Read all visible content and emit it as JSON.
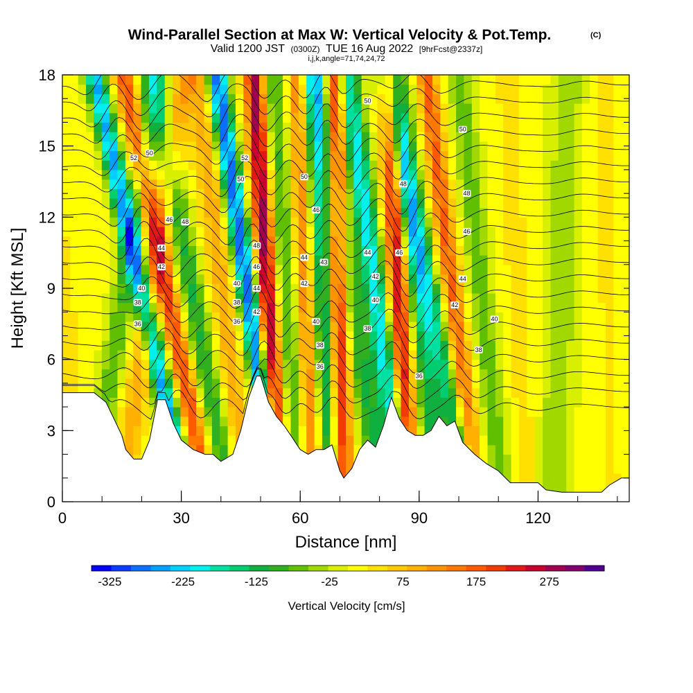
{
  "chart_data": {
    "type": "heatmap",
    "title": "Wind-Parallel Section at Max W: Vertical Velocity & Pot.Temp.",
    "title_mark": "(C)",
    "subtitle_a": "Valid 1200 JST",
    "subtitle_b": "(0300Z)",
    "subtitle_c": "TUE 16 Aug 2022",
    "subtitle_d": "[9hrFcst@2337z]",
    "index_line": "i,j,k,angle=71,74,24,72",
    "xlabel": "Distance [nm]",
    "ylabel": "Height [Kft MSL]",
    "xlim": [
      0,
      143
    ],
    "ylim": [
      0,
      18
    ],
    "x_ticks": [
      0,
      30,
      60,
      90,
      120
    ],
    "x_tick_labels": [
      "0",
      "30",
      "60",
      "90",
      "120"
    ],
    "x_minor_step": 10,
    "y_ticks": [
      0,
      3,
      6,
      9,
      12,
      15,
      18
    ],
    "y_tick_labels": [
      "0",
      "3",
      "6",
      "9",
      "12",
      "15",
      "18"
    ],
    "y_minor_step": 1,
    "colorbar": {
      "title": "Vertical Velocity [cm/s]",
      "min": -350,
      "max": 350,
      "tick_values": [
        -325,
        -225,
        -125,
        -25,
        75,
        175,
        275
      ],
      "tick_labels": [
        "-325",
        "-225",
        "-125",
        "-25",
        "75",
        "175",
        "275"
      ],
      "colors": [
        "#0000ff",
        "#0a3cff",
        "#0a6eff",
        "#00a0ff",
        "#00d0ff",
        "#00f0f0",
        "#00e0a0",
        "#00cc70",
        "#10b040",
        "#30b020",
        "#60c000",
        "#a0d800",
        "#d8f000",
        "#ffff00",
        "#ffe000",
        "#ffc800",
        "#ffb000",
        "#ff9400",
        "#ff7800",
        "#ff5a00",
        "#f03c00",
        "#e01818",
        "#c80030",
        "#a00050",
        "#800070",
        "#500090"
      ]
    },
    "terrain_profile_kft": [
      [
        0,
        4.6
      ],
      [
        8,
        4.6
      ],
      [
        11,
        4.2
      ],
      [
        13,
        3.5
      ],
      [
        15,
        2.8
      ],
      [
        16,
        2.2
      ],
      [
        18,
        1.8
      ],
      [
        20,
        1.8
      ],
      [
        22,
        2.6
      ],
      [
        24,
        4.3
      ],
      [
        26,
        4.3
      ],
      [
        28,
        3.3
      ],
      [
        30,
        2.6
      ],
      [
        33,
        2.2
      ],
      [
        36,
        2.0
      ],
      [
        38,
        2.0
      ],
      [
        40,
        1.7
      ],
      [
        43,
        2.0
      ],
      [
        45,
        3.0
      ],
      [
        47,
        4.4
      ],
      [
        49,
        5.3
      ],
      [
        50,
        5.3
      ],
      [
        52,
        4.2
      ],
      [
        54,
        3.6
      ],
      [
        56,
        3.2
      ],
      [
        58,
        2.7
      ],
      [
        60,
        2.2
      ],
      [
        62,
        2.0
      ],
      [
        64,
        2.2
      ],
      [
        66,
        2.2
      ],
      [
        68,
        2.4
      ],
      [
        70,
        1.3
      ],
      [
        71,
        1.0
      ],
      [
        73,
        1.4
      ],
      [
        75,
        2.2
      ],
      [
        77,
        2.6
      ],
      [
        79,
        2.3
      ],
      [
        81,
        3.2
      ],
      [
        83,
        4.4
      ],
      [
        85,
        3.5
      ],
      [
        87,
        3.0
      ],
      [
        89,
        2.8
      ],
      [
        91,
        2.8
      ],
      [
        93,
        3.0
      ],
      [
        95,
        3.6
      ],
      [
        97,
        3.2
      ],
      [
        99,
        3.4
      ],
      [
        101,
        2.5
      ],
      [
        104,
        2.0
      ],
      [
        107,
        1.6
      ],
      [
        110,
        1.3
      ],
      [
        113,
        0.8
      ],
      [
        117,
        0.8
      ],
      [
        120,
        0.8
      ],
      [
        122,
        0.5
      ],
      [
        126,
        0.4
      ],
      [
        133,
        0.4
      ],
      [
        136,
        0.4
      ],
      [
        138,
        0.7
      ],
      [
        141,
        1.0
      ],
      [
        143,
        1.0
      ]
    ],
    "w_field": {
      "description_bands": "alternating updraft/downdraft bands tilted with height",
      "bands": [
        {
          "x_base": 2,
          "slope": -0.6,
          "width": 3,
          "w": 40
        },
        {
          "x_base": 12,
          "slope": 0.9,
          "width": 3,
          "w": -90
        },
        {
          "x_base": 19,
          "slope": 0.9,
          "width": 3,
          "w": 90
        },
        {
          "x_base": 25,
          "slope": -1.3,
          "width": 2.5,
          "w": -260
        },
        {
          "x_base": 31,
          "slope": -1.2,
          "width": 2.5,
          "w": 180
        },
        {
          "x_base": 37,
          "slope": -1.1,
          "width": 3,
          "w": -120
        },
        {
          "x_base": 43,
          "slope": -0.7,
          "width": 3,
          "w": 90
        },
        {
          "x_base": 50,
          "slope": -0.85,
          "width": 2.5,
          "w": -300
        },
        {
          "x_base": 53,
          "slope": -0.35,
          "width": 2.5,
          "w": 280
        },
        {
          "x_base": 58,
          "slope": -0.4,
          "width": 3,
          "w": -100
        },
        {
          "x_base": 62,
          "slope": -0.2,
          "width": 2.5,
          "w": 140
        },
        {
          "x_base": 67,
          "slope": -0.3,
          "width": 3,
          "w": -180
        },
        {
          "x_base": 70,
          "slope": -0.1,
          "width": 2.5,
          "w": 260
        },
        {
          "x_base": 76,
          "slope": -0.9,
          "width": 3,
          "w": -120
        },
        {
          "x_base": 82,
          "slope": -0.8,
          "width": 3,
          "w": -220
        },
        {
          "x_base": 86,
          "slope": -0.3,
          "width": 2.5,
          "w": 240
        },
        {
          "x_base": 92,
          "slope": -0.6,
          "width": 3,
          "w": -130
        },
        {
          "x_base": 97,
          "slope": -1.2,
          "width": 3,
          "w": -160
        },
        {
          "x_base": 101,
          "slope": -0.7,
          "width": 2.5,
          "w": 160
        },
        {
          "x_base": 108,
          "slope": -0.6,
          "width": 3,
          "w": -80
        },
        {
          "x_base": 116,
          "slope": -0.3,
          "width": 3,
          "w": 30
        },
        {
          "x_base": 125,
          "slope": 0.2,
          "width": 4,
          "w": -60
        },
        {
          "x_base": 138,
          "slope": -0.1,
          "width": 4,
          "w": 20
        }
      ]
    },
    "theta_contours_K": {
      "levels": [
        32,
        33,
        34,
        35,
        36,
        37,
        38,
        39,
        40,
        41,
        42,
        43,
        44,
        45,
        46,
        47,
        48,
        49,
        50,
        51,
        52
      ],
      "labels": [
        {
          "x": 18,
          "y": 14.5,
          "text": "52"
        },
        {
          "x": 22,
          "y": 14.7,
          "text": "50"
        },
        {
          "x": 27,
          "y": 11.9,
          "text": "46"
        },
        {
          "x": 31,
          "y": 11.8,
          "text": "48"
        },
        {
          "x": 25,
          "y": 10.7,
          "text": "44"
        },
        {
          "x": 25,
          "y": 9.9,
          "text": "42"
        },
        {
          "x": 20,
          "y": 9.0,
          "text": "40"
        },
        {
          "x": 19,
          "y": 8.4,
          "text": "38"
        },
        {
          "x": 19,
          "y": 7.5,
          "text": "36"
        },
        {
          "x": 46,
          "y": 14.5,
          "text": "52"
        },
        {
          "x": 45,
          "y": 13.6,
          "text": "50"
        },
        {
          "x": 49,
          "y": 10.8,
          "text": "48"
        },
        {
          "x": 49,
          "y": 9.9,
          "text": "46"
        },
        {
          "x": 49,
          "y": 9.0,
          "text": "44"
        },
        {
          "x": 49,
          "y": 8.0,
          "text": "42"
        },
        {
          "x": 44,
          "y": 9.2,
          "text": "40"
        },
        {
          "x": 44,
          "y": 8.4,
          "text": "38"
        },
        {
          "x": 44,
          "y": 7.6,
          "text": "36"
        },
        {
          "x": 61,
          "y": 13.7,
          "text": "50"
        },
        {
          "x": 64,
          "y": 12.3,
          "text": "46"
        },
        {
          "x": 61,
          "y": 10.3,
          "text": "44"
        },
        {
          "x": 66,
          "y": 10.1,
          "text": "43"
        },
        {
          "x": 61,
          "y": 9.2,
          "text": "42"
        },
        {
          "x": 64,
          "y": 7.6,
          "text": "40"
        },
        {
          "x": 65,
          "y": 6.6,
          "text": "38"
        },
        {
          "x": 65,
          "y": 5.7,
          "text": "36"
        },
        {
          "x": 77,
          "y": 16.9,
          "text": "50"
        },
        {
          "x": 77,
          "y": 10.5,
          "text": "44"
        },
        {
          "x": 79,
          "y": 9.5,
          "text": "42"
        },
        {
          "x": 79,
          "y": 8.5,
          "text": "40"
        },
        {
          "x": 77,
          "y": 7.3,
          "text": "38"
        },
        {
          "x": 86,
          "y": 13.4,
          "text": "48"
        },
        {
          "x": 85,
          "y": 10.5,
          "text": "46"
        },
        {
          "x": 90,
          "y": 5.3,
          "text": "36"
        },
        {
          "x": 101,
          "y": 15.7,
          "text": "50"
        },
        {
          "x": 102,
          "y": 13.0,
          "text": "48"
        },
        {
          "x": 102,
          "y": 11.4,
          "text": "46"
        },
        {
          "x": 101,
          "y": 9.4,
          "text": "44"
        },
        {
          "x": 99,
          "y": 8.3,
          "text": "42"
        },
        {
          "x": 109,
          "y": 7.7,
          "text": "40"
        },
        {
          "x": 105,
          "y": 6.4,
          "text": "38"
        }
      ]
    }
  }
}
